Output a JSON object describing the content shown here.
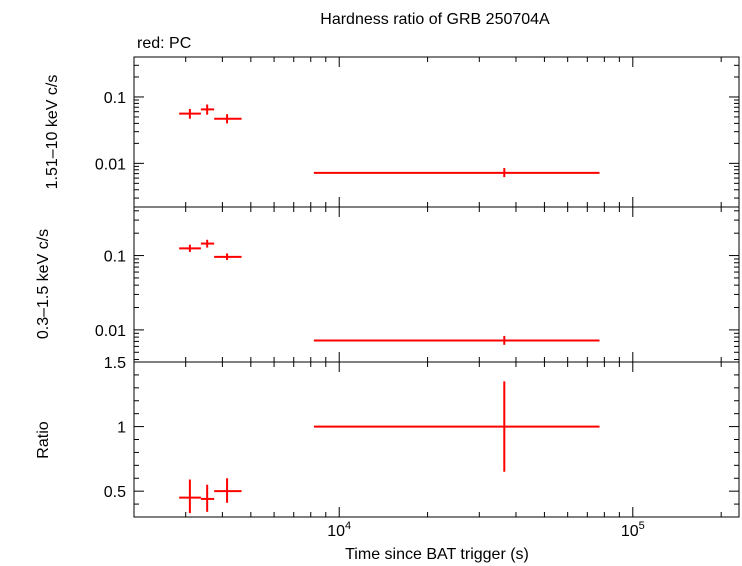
{
  "chart_data": {
    "type": "scatter",
    "title": "Hardness ratio of GRB 250704A",
    "subtitle": "red: PC",
    "xlabel": "Time since BAT trigger (s)",
    "x_scale": "log",
    "xlim": [
      2000,
      230000
    ],
    "x_ticks": [
      {
        "value": 10000,
        "base": "10",
        "exp": "4"
      },
      {
        "value": 100000,
        "base": "10",
        "exp": "5"
      }
    ],
    "series_color": "#ff0000",
    "panels": [
      {
        "ylabel": "1.51–10 keV c/s",
        "y_scale": "log",
        "ylim": [
          0.0022,
          0.4
        ],
        "y_ticks": [
          {
            "value": 0.1,
            "label": "0.1"
          },
          {
            "value": 0.01,
            "label": "0.01"
          }
        ],
        "points": [
          {
            "x": 3100,
            "xlo": 2850,
            "xhi": 3380,
            "y": 0.056,
            "ylo": 0.047,
            "yhi": 0.066
          },
          {
            "x": 3550,
            "xlo": 3380,
            "xhi": 3750,
            "y": 0.065,
            "ylo": 0.054,
            "yhi": 0.077
          },
          {
            "x": 4150,
            "xlo": 3750,
            "xhi": 4650,
            "y": 0.047,
            "ylo": 0.04,
            "yhi": 0.055
          },
          {
            "x": 36500,
            "xlo": 8200,
            "xhi": 77000,
            "y": 0.0072,
            "ylo": 0.0062,
            "yhi": 0.0085
          }
        ]
      },
      {
        "ylabel": "0.3–1.5 keV c/s",
        "y_scale": "log",
        "ylim": [
          0.0037,
          0.45
        ],
        "y_ticks": [
          {
            "value": 0.1,
            "label": "0.1"
          },
          {
            "value": 0.01,
            "label": "0.01"
          }
        ],
        "points": [
          {
            "x": 3100,
            "xlo": 2850,
            "xhi": 3380,
            "y": 0.125,
            "ylo": 0.112,
            "yhi": 0.14
          },
          {
            "x": 3550,
            "xlo": 3380,
            "xhi": 3750,
            "y": 0.145,
            "ylo": 0.128,
            "yhi": 0.163
          },
          {
            "x": 4150,
            "xlo": 3750,
            "xhi": 4650,
            "y": 0.096,
            "ylo": 0.087,
            "yhi": 0.107
          },
          {
            "x": 36500,
            "xlo": 8200,
            "xhi": 77000,
            "y": 0.0072,
            "ylo": 0.0063,
            "yhi": 0.0083
          }
        ]
      },
      {
        "ylabel": "Ratio",
        "y_scale": "linear",
        "ylim": [
          0.3,
          1.5
        ],
        "y_ticks": [
          {
            "value": 0.5,
            "label": "0.5"
          },
          {
            "value": 1,
            "label": "1"
          },
          {
            "value": 1.5,
            "label": "1.5"
          }
        ],
        "points": [
          {
            "x": 3100,
            "xlo": 2850,
            "xhi": 3380,
            "y": 0.45,
            "ylo": 0.33,
            "yhi": 0.59
          },
          {
            "x": 3550,
            "xlo": 3380,
            "xhi": 3750,
            "y": 0.44,
            "ylo": 0.34,
            "yhi": 0.55
          },
          {
            "x": 4150,
            "xlo": 3750,
            "xhi": 4650,
            "y": 0.5,
            "ylo": 0.41,
            "yhi": 0.6
          },
          {
            "x": 36500,
            "xlo": 8200,
            "xhi": 77000,
            "y": 1.0,
            "ylo": 0.65,
            "yhi": 1.35
          }
        ]
      }
    ]
  }
}
